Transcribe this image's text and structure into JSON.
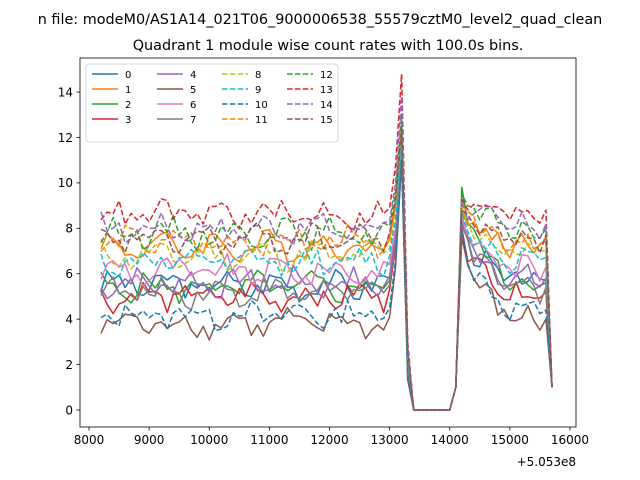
{
  "suptitle": "n file: modeM0/AS1A14_021T06_9000006538_55579cztM0_level2_quad_clean",
  "chart_data": {
    "type": "line",
    "title": "Quadrant 1 module wise count rates with 100.0s bins.",
    "xlabel": "",
    "ylabel": "",
    "x_offset_label": "+5.053e8",
    "xlim": [
      7850,
      16100
    ],
    "ylim": [
      -0.75,
      15.5
    ],
    "xticks": [
      8000,
      9000,
      10000,
      11000,
      12000,
      13000,
      14000,
      15000,
      16000
    ],
    "yticks": [
      0,
      2,
      4,
      6,
      8,
      10,
      12,
      14
    ],
    "grid": false,
    "legend": {
      "placement": "top-left",
      "columns": 4
    },
    "x_start": 8200,
    "x_step": 100,
    "series": [
      {
        "name": "0",
        "color": "#1f77b4",
        "style": "solid",
        "base": 5.5,
        "spike": 12.0,
        "post": 8.2
      },
      {
        "name": "1",
        "color": "#ff7f0e",
        "style": "solid",
        "base": 7.2,
        "spike": 12.5,
        "post": 8.8
      },
      {
        "name": "2",
        "color": "#2ca02c",
        "style": "solid",
        "base": 5.4,
        "spike": 11.6,
        "post": 9.8
      },
      {
        "name": "3",
        "color": "#d62728",
        "style": "solid",
        "base": 5.0,
        "spike": 11.2,
        "post": 8.0
      },
      {
        "name": "4",
        "color": "#9467bd",
        "style": "solid",
        "base": 5.6,
        "spike": 11.8,
        "post": 8.4
      },
      {
        "name": "5",
        "color": "#8c564b",
        "style": "solid",
        "base": 3.8,
        "spike": 11.0,
        "post": 7.6
      },
      {
        "name": "6",
        "color": "#e377c2",
        "style": "solid",
        "base": 6.1,
        "spike": 11.5,
        "post": 8.6
      },
      {
        "name": "7",
        "color": "#7f7f7f",
        "style": "solid",
        "base": 5.2,
        "spike": 11.4,
        "post": 8.1
      },
      {
        "name": "8",
        "color": "#bcbd22",
        "style": "dashed",
        "base": 6.8,
        "spike": 12.2,
        "post": 8.9
      },
      {
        "name": "9",
        "color": "#17becf",
        "style": "dashed",
        "base": 6.5,
        "spike": 12.0,
        "post": 8.7
      },
      {
        "name": "10",
        "color": "#1f77b4",
        "style": "dashed",
        "base": 4.2,
        "spike": 11.0,
        "post": 7.9
      },
      {
        "name": "11",
        "color": "#ff7f0e",
        "style": "dashed",
        "base": 7.4,
        "spike": 12.8,
        "post": 9.0
      },
      {
        "name": "12",
        "color": "#2ca02c",
        "style": "dashed",
        "base": 7.8,
        "spike": 13.0,
        "post": 9.5
      },
      {
        "name": "13",
        "color": "#d62728",
        "style": "dashed",
        "base": 8.6,
        "spike": 14.8,
        "post": 9.3
      },
      {
        "name": "14",
        "color": "#9467bd",
        "style": "dashed",
        "base": 8.0,
        "spike": 13.8,
        "post": 9.2
      },
      {
        "name": "15",
        "color": "#8c564b",
        "style": "dashed",
        "base": 7.5,
        "spike": 12.4,
        "post": 8.8
      }
    ]
  }
}
